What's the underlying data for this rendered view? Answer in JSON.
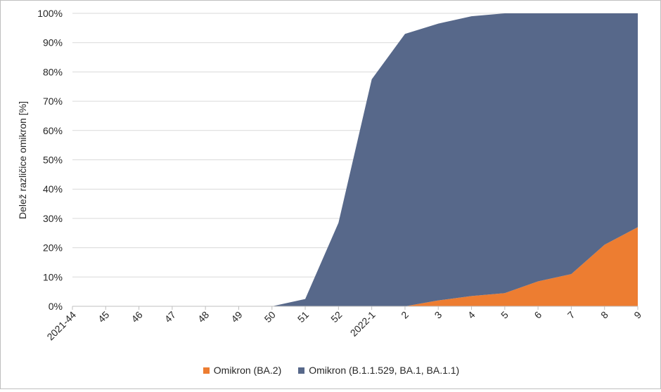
{
  "chart_data": {
    "type": "area",
    "stacked": true,
    "ylabel": "Delež različice omikron [%]",
    "xlabel": "",
    "ylim": [
      0,
      100
    ],
    "yticks": [
      "0%",
      "10%",
      "20%",
      "30%",
      "40%",
      "50%",
      "60%",
      "70%",
      "80%",
      "90%",
      "100%"
    ],
    "categories": [
      "2021-44",
      "45",
      "46",
      "47",
      "48",
      "49",
      "50",
      "51",
      "52",
      "2022-1",
      "2",
      "3",
      "4",
      "5",
      "6",
      "7",
      "8",
      "9"
    ],
    "grid": true,
    "legend_position": "bottom",
    "series": [
      {
        "name": "Omikron (BA.2)",
        "color": "#ed7d31",
        "values": [
          0,
          0,
          0,
          0,
          0,
          0,
          0,
          0,
          0,
          0,
          0,
          2,
          3.5,
          4.5,
          8.5,
          11,
          21,
          27
        ]
      },
      {
        "name": "Omikron (B.1.1.529, BA.1, BA.1.1)",
        "color": "#57688a",
        "values": [
          0,
          0,
          0,
          0,
          0,
          0,
          0,
          2.5,
          28.5,
          77.5,
          93,
          94.5,
          95.5,
          95.5,
          91.5,
          89,
          79,
          73
        ]
      }
    ]
  }
}
